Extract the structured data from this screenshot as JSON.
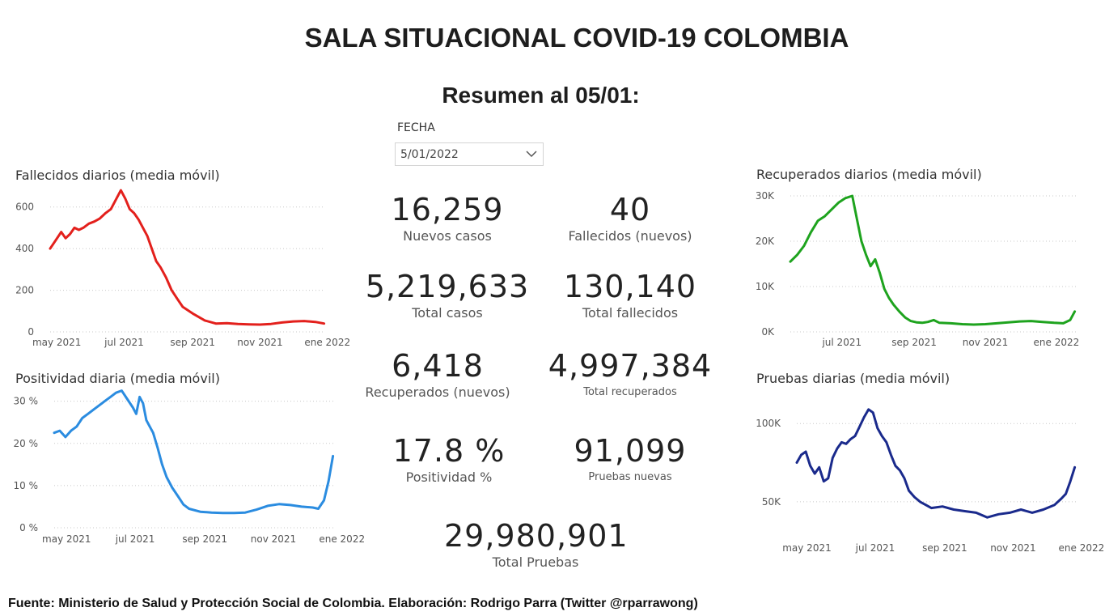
{
  "title": "SALA SITUACIONAL COVID-19 COLOMBIA",
  "subtitle": "Resumen al 05/01:",
  "slicer": {
    "label": "FECHA",
    "value": "5/01/2022"
  },
  "kpis": [
    {
      "value": "16,259",
      "label": "Nuevos casos"
    },
    {
      "value": "40",
      "label": "Fallecidos (nuevos)"
    },
    {
      "value": "5,219,633",
      "label": "Total casos"
    },
    {
      "value": "130,140",
      "label": "Total fallecidos"
    },
    {
      "value": "6,418",
      "label": "Recuperados (nuevos)"
    },
    {
      "value": "4,997,384",
      "label": "Total recuperados"
    },
    {
      "value": "17.8 %",
      "label": "Positividad %"
    },
    {
      "value": "91,099",
      "label": "Pruebas nuevas"
    },
    {
      "value": "29,980,901",
      "label": "Total Pruebas"
    }
  ],
  "footer": "Fuente: Ministerio de Salud y Protección Social de Colombia. Elaboración: Rodrigo Parra (Twitter @rparrawong)",
  "chart_data": [
    {
      "type": "line",
      "title": "Fallecidos diarios (media móvil)",
      "color": "#e3201c",
      "ylim": [
        0,
        700
      ],
      "yticks": [
        0,
        200,
        400,
        600
      ],
      "ytick_labels": [
        "0",
        "200",
        "400",
        "600"
      ],
      "xlim": [
        0,
        249
      ],
      "xticks": [
        6,
        67,
        129,
        190,
        251
      ],
      "xtick_labels": [
        "may 2021",
        "jul 2021",
        "sep 2021",
        "nov 2021",
        "ene 2022"
      ],
      "grid": true,
      "x": [
        0,
        5,
        10,
        14,
        18,
        22,
        26,
        30,
        35,
        40,
        45,
        50,
        55,
        60,
        64,
        68,
        72,
        76,
        80,
        84,
        88,
        92,
        96,
        100,
        105,
        110,
        115,
        120,
        130,
        140,
        150,
        160,
        170,
        180,
        190,
        200,
        210,
        220,
        230,
        240,
        248
      ],
      "values": [
        400,
        440,
        480,
        450,
        470,
        500,
        490,
        500,
        520,
        530,
        545,
        570,
        590,
        640,
        680,
        640,
        590,
        570,
        540,
        500,
        460,
        400,
        340,
        310,
        260,
        200,
        160,
        120,
        85,
        55,
        40,
        42,
        38,
        36,
        35,
        38,
        45,
        50,
        52,
        48,
        40
      ]
    },
    {
      "type": "line",
      "title": "Positividad diaria (media móvil)",
      "color": "#2b8ce0",
      "ylim": [
        0,
        33
      ],
      "yticks": [
        0,
        10,
        20,
        30
      ],
      "ytick_labels": [
        "0 %",
        "10 %",
        "20 %",
        "30 %"
      ],
      "xlim": [
        0,
        249
      ],
      "xticks": [
        11,
        72,
        134,
        195,
        256
      ],
      "xtick_labels": [
        "may 2021",
        "jul 2021",
        "sep 2021",
        "nov 2021",
        "ene 2022"
      ],
      "grid": true,
      "x": [
        0,
        5,
        10,
        15,
        20,
        25,
        30,
        35,
        40,
        45,
        50,
        55,
        60,
        65,
        70,
        73,
        76,
        79,
        82,
        85,
        88,
        92,
        96,
        100,
        105,
        110,
        115,
        120,
        130,
        140,
        150,
        160,
        170,
        180,
        190,
        200,
        210,
        220,
        230,
        235,
        240,
        244,
        248
      ],
      "values": [
        22.5,
        23,
        21.5,
        23,
        24,
        26,
        27,
        28,
        29,
        30,
        31,
        32,
        32.5,
        30.5,
        28.5,
        27,
        31,
        29.5,
        25.5,
        24,
        22.5,
        19,
        15,
        12,
        9.5,
        7.5,
        5.5,
        4.5,
        3.8,
        3.6,
        3.5,
        3.5,
        3.6,
        4.3,
        5.2,
        5.6,
        5.4,
        5,
        4.8,
        4.5,
        6.5,
        11,
        17
      ]
    },
    {
      "type": "line",
      "title": "Recuperados diarios (media móvil)",
      "color": "#1ea31e",
      "ylim": [
        0,
        30000
      ],
      "yticks": [
        0,
        10000,
        20000,
        30000
      ],
      "ytick_labels": [
        "0K",
        "10K",
        "20K",
        "30K"
      ],
      "xlim": [
        0,
        249
      ],
      "xticks": [
        45,
        108,
        170,
        232
      ],
      "xtick_labels": [
        "jul 2021",
        "sep 2021",
        "nov 2021",
        "ene 2022"
      ],
      "grid": true,
      "x": [
        0,
        6,
        12,
        18,
        24,
        30,
        36,
        42,
        48,
        54,
        58,
        62,
        66,
        70,
        74,
        78,
        82,
        86,
        90,
        95,
        100,
        105,
        110,
        115,
        120,
        125,
        130,
        140,
        150,
        160,
        170,
        180,
        190,
        200,
        210,
        220,
        230,
        238,
        244,
        248
      ],
      "values": [
        15500,
        17000,
        19000,
        22000,
        24500,
        25500,
        27000,
        28500,
        29500,
        30000,
        25000,
        20000,
        17000,
        14500,
        16000,
        13000,
        9500,
        7500,
        6000,
        4500,
        3200,
        2400,
        2100,
        2000,
        2200,
        2600,
        2000,
        1900,
        1700,
        1600,
        1700,
        1900,
        2100,
        2300,
        2400,
        2200,
        2000,
        1900,
        2600,
        4500
      ]
    },
    {
      "type": "line",
      "title": "Pruebas diarias (media móvil)",
      "color": "#1a2a8c",
      "ylim": [
        37000,
        112000
      ],
      "yticks": [
        50000,
        100000
      ],
      "ytick_labels": [
        "50K",
        "100K"
      ],
      "xlim": [
        0,
        249
      ],
      "xticks": [
        9,
        70,
        132,
        193,
        254
      ],
      "xtick_labels": [
        "may 2021",
        "jul 2021",
        "sep 2021",
        "nov 2021",
        "ene 2022"
      ],
      "grid": true,
      "x": [
        0,
        4,
        8,
        12,
        16,
        20,
        24,
        28,
        32,
        36,
        40,
        44,
        48,
        52,
        56,
        60,
        64,
        68,
        72,
        76,
        80,
        84,
        88,
        92,
        96,
        100,
        105,
        110,
        115,
        120,
        130,
        140,
        150,
        160,
        170,
        180,
        190,
        200,
        210,
        220,
        230,
        236,
        240,
        244,
        248
      ],
      "values": [
        75000,
        80000,
        82000,
        73000,
        68000,
        72000,
        63000,
        65000,
        78000,
        84000,
        88000,
        87000,
        90000,
        92000,
        98000,
        104000,
        109000,
        107000,
        97000,
        92000,
        88000,
        80000,
        73000,
        70000,
        65000,
        57000,
        53000,
        50000,
        48000,
        46000,
        47000,
        45000,
        44000,
        43000,
        40000,
        42000,
        43000,
        45000,
        43000,
        45000,
        48000,
        52000,
        55000,
        63000,
        72000
      ]
    }
  ]
}
